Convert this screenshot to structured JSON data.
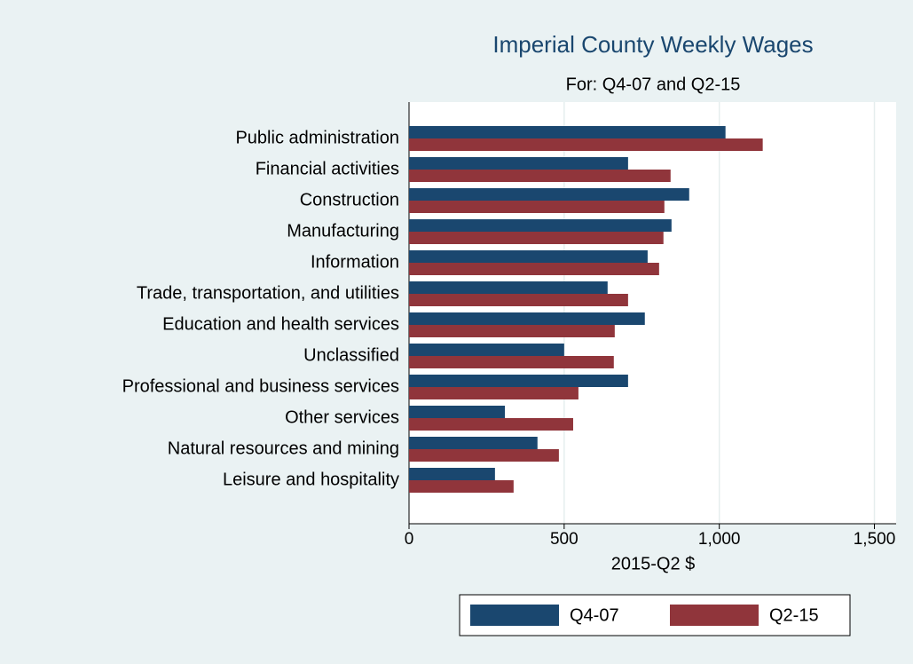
{
  "chart_data": {
    "type": "hbar",
    "title": "Imperial County Weekly Wages",
    "subtitle": "For: Q4-07 and Q2-15",
    "x_label": "2015-Q2 $",
    "categories": [
      "Public administration",
      "Financial activities",
      "Construction",
      "Manufacturing",
      "Information",
      "Trade, transportation, and utilities",
      "Education and health services",
      "Unclassified",
      "Professional and business services",
      "Other services",
      "Natural resources and mining",
      "Leisure and hospitality"
    ],
    "series": [
      {
        "name": "Q4-07",
        "color": "#1a476f",
        "values": [
          1020,
          706,
          903,
          846,
          769,
          640,
          760,
          500,
          706,
          309,
          414,
          277
        ]
      },
      {
        "name": "Q2-15",
        "color": "#90353b",
        "values": [
          1140,
          843,
          823,
          820,
          806,
          706,
          663,
          660,
          546,
          529,
          483,
          337
        ]
      }
    ],
    "xlim": [
      0,
      1570
    ],
    "xticks": [
      0,
      500,
      {
        "value": 1000,
        "label": "1,000"
      },
      {
        "value": 1500,
        "label": "1,500"
      }
    ],
    "grid": true,
    "legend": "bottom"
  }
}
